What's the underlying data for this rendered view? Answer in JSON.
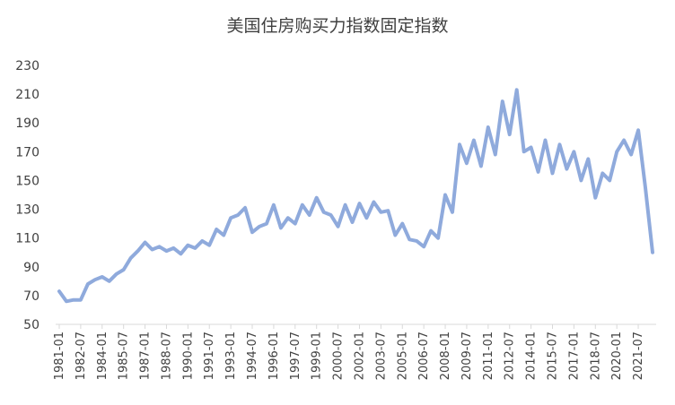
{
  "chart_data": {
    "type": "line",
    "title": "美国住房购买力指数固定指数",
    "xlabel": "",
    "ylabel": "",
    "ylim": [
      50,
      230
    ],
    "y_ticks": [
      50,
      70,
      90,
      110,
      130,
      150,
      170,
      190,
      210,
      230
    ],
    "x_tick_labels": [
      "1981-01",
      "1982-07",
      "1984-01",
      "1985-07",
      "1987-01",
      "1988-07",
      "1990-01",
      "1991-07",
      "1993-01",
      "1994-07",
      "1996-01",
      "1997-07",
      "1999-01",
      "2000-07",
      "2002-01",
      "2003-07",
      "2005-01",
      "2006-07",
      "2008-01",
      "2009-07",
      "2011-01",
      "2012-07",
      "2014-01",
      "2015-07",
      "2017-01",
      "2018-07",
      "2020-01",
      "2021-07"
    ],
    "grid": false,
    "legend": "none",
    "line_color": "#8faadc",
    "series": [
      {
        "x": [
          "1981-01",
          "1981-07",
          "1982-01",
          "1982-07",
          "1983-01",
          "1983-07",
          "1984-01",
          "1984-07",
          "1985-01",
          "1985-07",
          "1986-01",
          "1986-07",
          "1987-01",
          "1987-07",
          "1988-01",
          "1988-07",
          "1989-01",
          "1989-07",
          "1990-01",
          "1990-07",
          "1991-01",
          "1991-07",
          "1992-01",
          "1992-07",
          "1993-01",
          "1993-07",
          "1994-01",
          "1994-07",
          "1995-01",
          "1995-07",
          "1996-01",
          "1996-07",
          "1997-01",
          "1997-07",
          "1998-01",
          "1998-07",
          "1999-01",
          "1999-07",
          "2000-01",
          "2000-07",
          "2001-01",
          "2001-07",
          "2002-01",
          "2002-07",
          "2003-01",
          "2003-07",
          "2004-01",
          "2004-07",
          "2005-01",
          "2005-07",
          "2006-01",
          "2006-07",
          "2007-01",
          "2007-07",
          "2008-01",
          "2008-07",
          "2009-01",
          "2009-07",
          "2010-01",
          "2010-07",
          "2011-01",
          "2011-07",
          "2012-01",
          "2012-07",
          "2013-01",
          "2013-07",
          "2014-01",
          "2014-07",
          "2015-01",
          "2015-07",
          "2016-01",
          "2016-07",
          "2017-01",
          "2017-07",
          "2018-01",
          "2018-07",
          "2019-01",
          "2019-07",
          "2020-01",
          "2020-07",
          "2021-01",
          "2021-07",
          "2022-01",
          "2022-07"
        ],
        "values": [
          73,
          66,
          67,
          67,
          78,
          81,
          83,
          80,
          85,
          88,
          96,
          101,
          107,
          102,
          104,
          101,
          103,
          99,
          105,
          103,
          108,
          105,
          116,
          112,
          124,
          126,
          131,
          114,
          118,
          120,
          133,
          117,
          124,
          120,
          133,
          126,
          138,
          128,
          126,
          118,
          133,
          121,
          134,
          124,
          135,
          128,
          129,
          112,
          120,
          109,
          108,
          104,
          115,
          110,
          140,
          128,
          175,
          162,
          178,
          160,
          187,
          168,
          205,
          182,
          213,
          170,
          173,
          156,
          178,
          155,
          175,
          158,
          170,
          150,
          165,
          138,
          155,
          150,
          170,
          178,
          168,
          185,
          145,
          100
        ]
      }
    ]
  }
}
